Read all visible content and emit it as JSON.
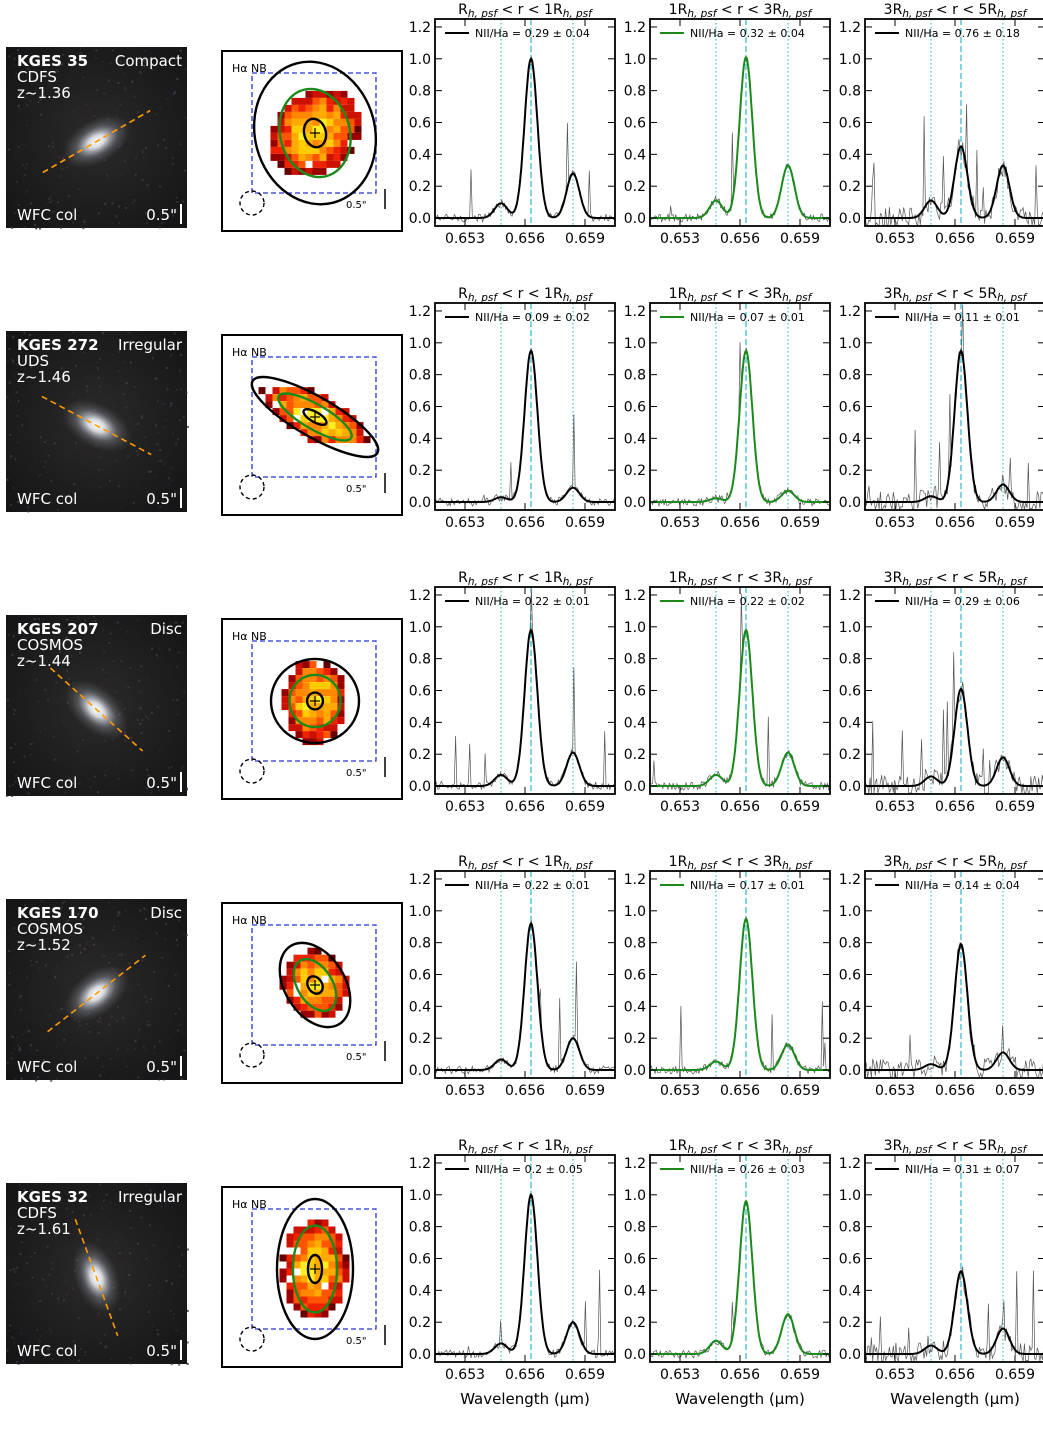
{
  "figure": {
    "panel_titles": [
      "R$h, psf$ < r < 1R$h, psf$",
      "1R$h, psf$ < r < 3R$h, psf$",
      "3R$h, psf$ < r < 5R$h, psf$"
    ],
    "x_axis_label": "Wavelength (μm)",
    "map_label": "Hα NB",
    "map_scale_label": "0.5\"",
    "image_filter_label": "WFC col",
    "image_scale_label": "0.5\""
  },
  "colors": {
    "ring1": "#000000",
    "ring2": "#1a8a1a",
    "ring3": "#000000",
    "aperture_box": "#2233dd",
    "pa_line": "#ff9900",
    "ha_line": "#17b0c9",
    "nii_line": "#17b0c9"
  },
  "galaxies": [
    {
      "name": "KGES 35",
      "morphology": "Compact",
      "field": "CDFS",
      "redshift": "z~1.36",
      "pa_deg": -30
    },
    {
      "name": "KGES 272",
      "morphology": "Irregular",
      "field": "UDS",
      "redshift": "z~1.46",
      "pa_deg": 28
    },
    {
      "name": "KGES 207",
      "morphology": "Disc",
      "field": "COSMOS",
      "redshift": "z~1.44",
      "pa_deg": 42
    },
    {
      "name": "KGES 170",
      "morphology": "Disc",
      "field": "COSMOS",
      "redshift": "z~1.52",
      "pa_deg": -38
    },
    {
      "name": "KGES 32",
      "morphology": "Irregular",
      "field": "CDFS",
      "redshift": "z~1.61",
      "pa_deg": 70
    }
  ],
  "chart_data": {
    "type": "line",
    "x_unit": "μm",
    "xlim": [
      0.6515,
      0.6605
    ],
    "ylim": [
      -0.05,
      1.25
    ],
    "xticks": [
      0.653,
      0.656,
      0.659
    ],
    "yticks": [
      0.0,
      0.2,
      0.4,
      0.6,
      0.8,
      1.0,
      1.2
    ],
    "ha_wavelength": 0.6563,
    "nii_wavelengths": [
      0.6548,
      0.6584
    ],
    "legend_label_prefix": "NII/Ha = ",
    "rows": [
      {
        "galaxy": "KGES 35",
        "panels": [
          {
            "ha_peak": 1.0,
            "nii_peak": 0.28,
            "nii_ratio": "0.29 ± 0.04"
          },
          {
            "ha_peak": 1.01,
            "nii_peak": 0.33,
            "nii_ratio": "0.32 ± 0.04"
          },
          {
            "ha_peak": 0.45,
            "nii_peak": 0.33,
            "nii_ratio": "0.76 ± 0.18"
          }
        ]
      },
      {
        "galaxy": "KGES 272",
        "panels": [
          {
            "ha_peak": 0.95,
            "nii_peak": 0.09,
            "nii_ratio": "0.09 ± 0.02"
          },
          {
            "ha_peak": 0.95,
            "nii_peak": 0.07,
            "nii_ratio": "0.07 ± 0.01"
          },
          {
            "ha_peak": 0.95,
            "nii_peak": 0.11,
            "nii_ratio": "0.11 ± 0.01"
          }
        ]
      },
      {
        "galaxy": "KGES 207",
        "panels": [
          {
            "ha_peak": 0.98,
            "nii_peak": 0.21,
            "nii_ratio": "0.22 ± 0.01"
          },
          {
            "ha_peak": 0.98,
            "nii_peak": 0.21,
            "nii_ratio": "0.22 ± 0.02"
          },
          {
            "ha_peak": 0.61,
            "nii_peak": 0.18,
            "nii_ratio": "0.29 ± 0.06"
          }
        ]
      },
      {
        "galaxy": "KGES 170",
        "panels": [
          {
            "ha_peak": 0.92,
            "nii_peak": 0.2,
            "nii_ratio": "0.22 ± 0.01"
          },
          {
            "ha_peak": 0.95,
            "nii_peak": 0.16,
            "nii_ratio": "0.17 ± 0.01"
          },
          {
            "ha_peak": 0.79,
            "nii_peak": 0.11,
            "nii_ratio": "0.14 ± 0.04"
          }
        ]
      },
      {
        "galaxy": "KGES 32",
        "panels": [
          {
            "ha_peak": 1.0,
            "nii_peak": 0.2,
            "nii_ratio": "0.2 ± 0.05"
          },
          {
            "ha_peak": 0.96,
            "nii_peak": 0.25,
            "nii_ratio": "0.26 ± 0.03"
          },
          {
            "ha_peak": 0.52,
            "nii_peak": 0.16,
            "nii_ratio": "0.31 ± 0.07"
          }
        ]
      }
    ]
  }
}
